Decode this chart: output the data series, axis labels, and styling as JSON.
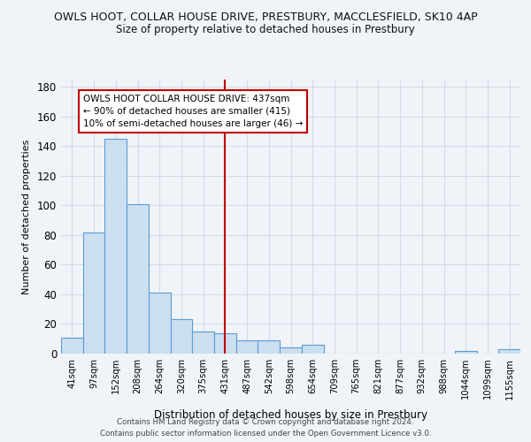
{
  "title1": "OWLS HOOT, COLLAR HOUSE DRIVE, PRESTBURY, MACCLESFIELD, SK10 4AP",
  "title2": "Size of property relative to detached houses in Prestbury",
  "xlabel": "Distribution of detached houses by size in Prestbury",
  "ylabel": "Number of detached properties",
  "footer1": "Contains HM Land Registry data © Crown copyright and database right 2024.",
  "footer2": "Contains public sector information licensed under the Open Government Licence v3.0.",
  "categories": [
    "41sqm",
    "97sqm",
    "152sqm",
    "208sqm",
    "264sqm",
    "320sqm",
    "375sqm",
    "431sqm",
    "487sqm",
    "542sqm",
    "598sqm",
    "654sqm",
    "709sqm",
    "765sqm",
    "821sqm",
    "877sqm",
    "932sqm",
    "988sqm",
    "1044sqm",
    "1099sqm",
    "1155sqm"
  ],
  "values": [
    11,
    82,
    145,
    101,
    41,
    23,
    15,
    14,
    9,
    9,
    4,
    6,
    0,
    0,
    0,
    0,
    0,
    0,
    2,
    0,
    3
  ],
  "highlight_index": 7,
  "bar_color": "#ccdff0",
  "bar_edge_color": "#5b9bd5",
  "vline_color": "#c00000",
  "annotation_box_edge": "#c00000",
  "annotation_line1": "OWLS HOOT COLLAR HOUSE DRIVE: 437sqm",
  "annotation_line2": "← 90% of detached houses are smaller (415)",
  "annotation_line3": "10% of semi-detached houses are larger (46) →",
  "ylim": [
    0,
    185
  ],
  "yticks": [
    0,
    20,
    40,
    60,
    80,
    100,
    120,
    140,
    160,
    180
  ],
  "bg_color": "#f0f4f8",
  "plot_bg_color": "#f0f4f8",
  "grid_color": "#d0dce8"
}
